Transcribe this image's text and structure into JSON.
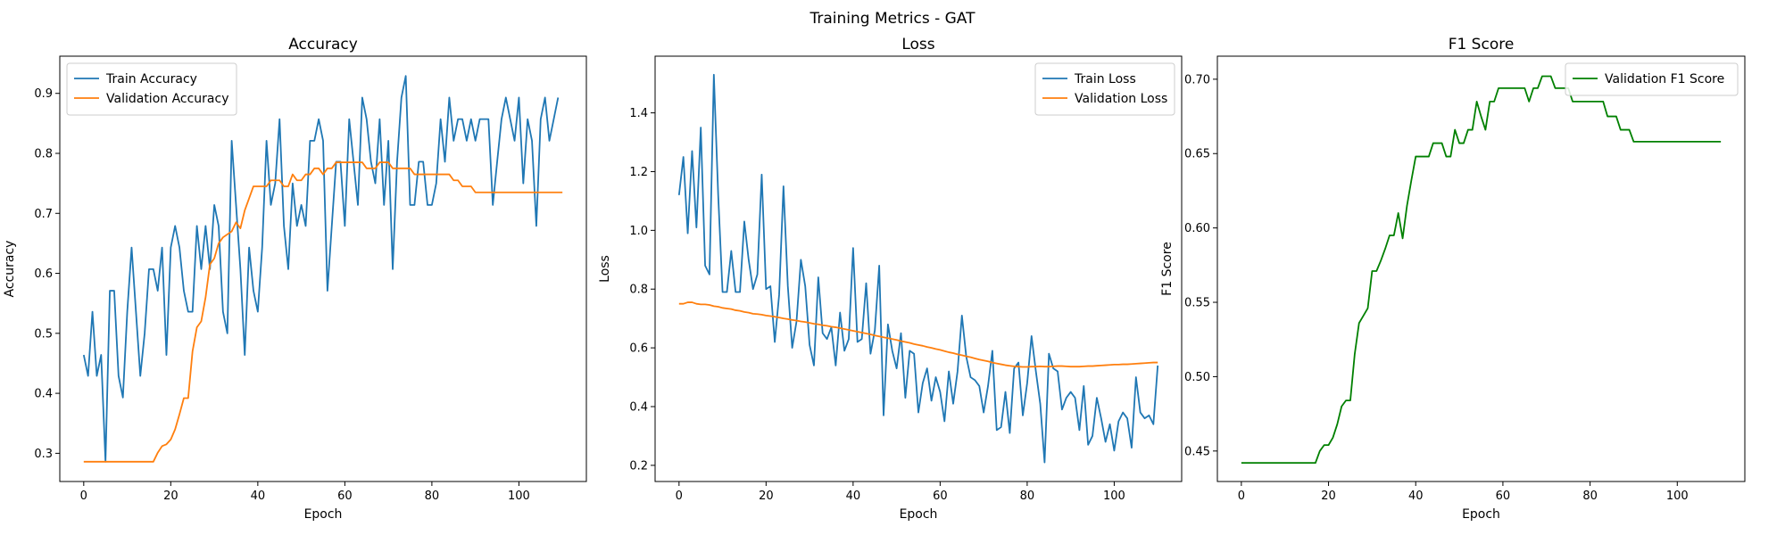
{
  "figure": {
    "suptitle": "Training Metrics - GAT"
  },
  "colors": {
    "train": "#1f77b4",
    "validation": "#ff7f0e",
    "f1": "#008000"
  },
  "chart_data": [
    {
      "type": "line",
      "title": "Accuracy",
      "xlabel": "Epoch",
      "ylabel": "Accuracy",
      "xlim": [
        -5.5,
        115.5
      ],
      "ylim": [
        0.253,
        0.962
      ],
      "xticks": [
        0,
        20,
        40,
        60,
        80,
        100
      ],
      "yticks": [
        0.3,
        0.4,
        0.5,
        0.6,
        0.7,
        0.8,
        0.9
      ],
      "grid": false,
      "legend": "upper left",
      "series": [
        {
          "name": "Train Accuracy",
          "color": "#1f77b4",
          "values": [
            0.464,
            0.429,
            0.536,
            0.429,
            0.464,
            0.286,
            0.571,
            0.571,
            0.429,
            0.393,
            0.536,
            0.643,
            0.536,
            0.429,
            0.5,
            0.607,
            0.607,
            0.571,
            0.643,
            0.464,
            0.643,
            0.679,
            0.643,
            0.571,
            0.536,
            0.536,
            0.679,
            0.607,
            0.679,
            0.607,
            0.714,
            0.679,
            0.536,
            0.5,
            0.821,
            0.714,
            0.607,
            0.464,
            0.643,
            0.571,
            0.536,
            0.643,
            0.821,
            0.714,
            0.75,
            0.857,
            0.679,
            0.607,
            0.75,
            0.679,
            0.714,
            0.679,
            0.821,
            0.821,
            0.857,
            0.821,
            0.571,
            0.679,
            0.786,
            0.786,
            0.679,
            0.857,
            0.786,
            0.714,
            0.893,
            0.857,
            0.786,
            0.75,
            0.857,
            0.714,
            0.821,
            0.607,
            0.786,
            0.893,
            0.929,
            0.714,
            0.714,
            0.786,
            0.786,
            0.714,
            0.714,
            0.75,
            0.857,
            0.786,
            0.893,
            0.821,
            0.857,
            0.857,
            0.821,
            0.857,
            0.821,
            0.857,
            0.857,
            0.857,
            0.714,
            0.786,
            0.857,
            0.893,
            0.857,
            0.821,
            0.893,
            0.75,
            0.857,
            0.821,
            0.679,
            0.857,
            0.893,
            0.821,
            0.857,
            0.893
          ]
        },
        {
          "name": "Validation Accuracy",
          "color": "#ff7f0e",
          "values": [
            0.286,
            0.286,
            0.286,
            0.286,
            0.286,
            0.286,
            0.286,
            0.286,
            0.286,
            0.286,
            0.286,
            0.286,
            0.286,
            0.286,
            0.286,
            0.286,
            0.286,
            0.301,
            0.312,
            0.315,
            0.323,
            0.34,
            0.365,
            0.392,
            0.392,
            0.47,
            0.51,
            0.52,
            0.56,
            0.615,
            0.625,
            0.65,
            0.66,
            0.665,
            0.67,
            0.685,
            0.675,
            0.705,
            0.725,
            0.745,
            0.745,
            0.745,
            0.745,
            0.755,
            0.755,
            0.755,
            0.745,
            0.745,
            0.765,
            0.755,
            0.755,
            0.765,
            0.765,
            0.775,
            0.775,
            0.765,
            0.775,
            0.775,
            0.785,
            0.785,
            0.785,
            0.785,
            0.785,
            0.785,
            0.785,
            0.775,
            0.775,
            0.775,
            0.785,
            0.785,
            0.785,
            0.775,
            0.775,
            0.775,
            0.775,
            0.775,
            0.765,
            0.765,
            0.765,
            0.765,
            0.765,
            0.765,
            0.765,
            0.765,
            0.765,
            0.755,
            0.755,
            0.745,
            0.745,
            0.745,
            0.735,
            0.735,
            0.735,
            0.735,
            0.735,
            0.735,
            0.735,
            0.735,
            0.735,
            0.735,
            0.735,
            0.735,
            0.735,
            0.735,
            0.735,
            0.735,
            0.735,
            0.735,
            0.735,
            0.735,
            0.735
          ]
        }
      ]
    },
    {
      "type": "line",
      "title": "Loss",
      "xlabel": "Epoch",
      "ylabel": "Loss",
      "xlim": [
        -5.5,
        115.5
      ],
      "ylim": [
        0.145,
        1.593
      ],
      "xticks": [
        0,
        20,
        40,
        60,
        80,
        100
      ],
      "yticks": [
        0.2,
        0.4,
        0.6,
        0.8,
        1.0,
        1.2,
        1.4
      ],
      "grid": false,
      "legend": "upper right",
      "series": [
        {
          "name": "Train Loss",
          "color": "#1f77b4",
          "values": [
            1.12,
            1.25,
            0.99,
            1.27,
            1.01,
            1.35,
            0.88,
            0.85,
            1.53,
            1.12,
            0.79,
            0.79,
            0.93,
            0.79,
            0.79,
            1.03,
            0.9,
            0.8,
            0.85,
            1.19,
            0.8,
            0.81,
            0.62,
            0.78,
            1.15,
            0.81,
            0.6,
            0.69,
            0.9,
            0.81,
            0.61,
            0.54,
            0.84,
            0.65,
            0.63,
            0.67,
            0.54,
            0.72,
            0.59,
            0.63,
            0.94,
            0.62,
            0.63,
            0.82,
            0.58,
            0.66,
            0.88,
            0.37,
            0.68,
            0.59,
            0.53,
            0.65,
            0.43,
            0.59,
            0.58,
            0.38,
            0.48,
            0.53,
            0.42,
            0.5,
            0.45,
            0.35,
            0.52,
            0.41,
            0.52,
            0.71,
            0.57,
            0.5,
            0.49,
            0.47,
            0.38,
            0.47,
            0.59,
            0.32,
            0.33,
            0.45,
            0.31,
            0.53,
            0.55,
            0.37,
            0.48,
            0.64,
            0.52,
            0.41,
            0.21,
            0.58,
            0.53,
            0.52,
            0.39,
            0.43,
            0.45,
            0.43,
            0.32,
            0.47,
            0.27,
            0.3,
            0.43,
            0.36,
            0.28,
            0.34,
            0.25,
            0.35,
            0.38,
            0.36,
            0.26,
            0.5,
            0.38,
            0.36,
            0.37,
            0.34,
            0.54
          ]
        },
        {
          "name": "Validation Loss",
          "color": "#ff7f0e",
          "values": [
            0.75,
            0.75,
            0.755,
            0.755,
            0.75,
            0.748,
            0.748,
            0.746,
            0.742,
            0.74,
            0.736,
            0.734,
            0.732,
            0.728,
            0.726,
            0.722,
            0.72,
            0.716,
            0.715,
            0.713,
            0.71,
            0.708,
            0.706,
            0.703,
            0.7,
            0.698,
            0.695,
            0.693,
            0.69,
            0.688,
            0.685,
            0.682,
            0.68,
            0.677,
            0.675,
            0.672,
            0.67,
            0.667,
            0.664,
            0.661,
            0.658,
            0.655,
            0.652,
            0.649,
            0.646,
            0.642,
            0.639,
            0.636,
            0.633,
            0.63,
            0.627,
            0.623,
            0.62,
            0.617,
            0.613,
            0.61,
            0.607,
            0.603,
            0.6,
            0.596,
            0.593,
            0.589,
            0.585,
            0.582,
            0.578,
            0.575,
            0.571,
            0.568,
            0.564,
            0.56,
            0.557,
            0.554,
            0.55,
            0.547,
            0.544,
            0.541,
            0.539,
            0.537,
            0.536,
            0.535,
            0.535,
            0.536,
            0.536,
            0.537,
            0.536,
            0.536,
            0.537,
            0.538,
            0.538,
            0.537,
            0.536,
            0.536,
            0.536,
            0.537,
            0.538,
            0.538,
            0.539,
            0.54,
            0.541,
            0.542,
            0.543,
            0.543,
            0.544,
            0.544,
            0.545,
            0.546,
            0.547,
            0.548,
            0.549,
            0.55,
            0.55
          ]
        }
      ]
    },
    {
      "type": "line",
      "title": "F1 Score",
      "xlabel": "Epoch",
      "ylabel": "F1 Score",
      "xlim": [
        -5.5,
        115.5
      ],
      "ylim": [
        0.4295,
        0.7155
      ],
      "xticks": [
        0,
        20,
        40,
        60,
        80,
        100
      ],
      "yticks": [
        0.45,
        0.5,
        0.55,
        0.6,
        0.65,
        0.7
      ],
      "grid": false,
      "legend": "upper right",
      "series": [
        {
          "name": "Validation F1 Score",
          "color": "#008000",
          "values": [
            0.442,
            0.442,
            0.442,
            0.442,
            0.442,
            0.442,
            0.442,
            0.442,
            0.442,
            0.442,
            0.442,
            0.442,
            0.442,
            0.442,
            0.442,
            0.442,
            0.442,
            0.442,
            0.45,
            0.454,
            0.454,
            0.459,
            0.468,
            0.48,
            0.484,
            0.484,
            0.515,
            0.536,
            0.541,
            0.546,
            0.571,
            0.571,
            0.578,
            0.586,
            0.595,
            0.595,
            0.61,
            0.593,
            0.615,
            0.632,
            0.648,
            0.648,
            0.648,
            0.648,
            0.657,
            0.657,
            0.657,
            0.648,
            0.648,
            0.666,
            0.657,
            0.657,
            0.666,
            0.666,
            0.685,
            0.675,
            0.666,
            0.685,
            0.685,
            0.694,
            0.694,
            0.694,
            0.694,
            0.694,
            0.694,
            0.694,
            0.685,
            0.694,
            0.694,
            0.702,
            0.702,
            0.702,
            0.694,
            0.694,
            0.694,
            0.694,
            0.685,
            0.685,
            0.685,
            0.685,
            0.685,
            0.685,
            0.685,
            0.685,
            0.675,
            0.675,
            0.675,
            0.666,
            0.666,
            0.666,
            0.658,
            0.658,
            0.658,
            0.658,
            0.658,
            0.658,
            0.658,
            0.658,
            0.658,
            0.658,
            0.658,
            0.658,
            0.658,
            0.658,
            0.658,
            0.658,
            0.658,
            0.658,
            0.658,
            0.658,
            0.658
          ]
        }
      ]
    }
  ]
}
